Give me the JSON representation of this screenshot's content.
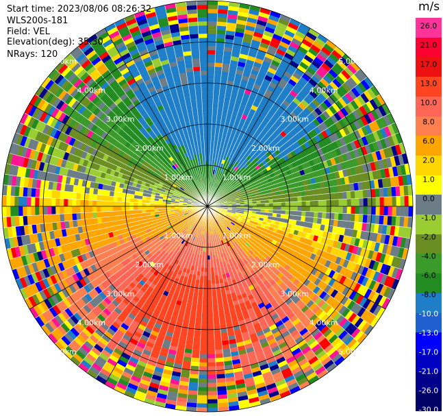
{
  "header": {
    "start_time": "Start time: 2023/08/06 08:26:32",
    "instrument": "WLS200s-181",
    "field": "Field: VEL",
    "elevation": "Elevation(deg): 35.30",
    "nrays": "NRays: 120"
  },
  "colorbar": {
    "units": "m/s",
    "ticks": [
      "26.0",
      "21.0",
      "17.0",
      "13.0",
      "10.0",
      "8.0",
      "6.0",
      "2.0",
      "1.0",
      "0.0",
      "-1.0",
      "-2.0",
      "-4.0",
      "-6.0",
      "-8.0",
      "-10.0",
      "-13.0",
      "-17.0",
      "-21.0",
      "-26.0",
      "-30.0"
    ],
    "colors": [
      "#ff3399",
      "#ff0033",
      "#ee1111",
      "#ff4422",
      "#ff6655",
      "#ff7f50",
      "#ffa500",
      "#ffd500",
      "#ffff00",
      "#6d7d87",
      "#9acd32",
      "#6b8e23",
      "#3a9a2a",
      "#228b22",
      "#1e7fc8",
      "#1f5fd0",
      "#0000ff",
      "#0000c0",
      "#00008b",
      "#000066"
    ]
  },
  "chart_data": {
    "type": "polar PPI scan",
    "field": "VEL",
    "units": "m/s",
    "elevation_deg": 35.3,
    "nrays": 120,
    "range_rings": [
      "1.00km",
      "2.00km",
      "3.00km",
      "4.00km",
      "5.00km"
    ],
    "range_ring_values_km": [
      1,
      2,
      3,
      4,
      5
    ],
    "color_levels": [
      -30,
      -26,
      -21,
      -17,
      -13,
      -10,
      -8,
      -6,
      -4,
      -2,
      -1,
      0,
      1,
      2,
      6,
      8,
      10,
      13,
      17,
      21,
      26
    ],
    "velocity_pattern": {
      "description": "dipole: negative (toward) velocities in the north/north-west sector, positive (away) velocities to the south",
      "northwest_min_ms": -10,
      "south_max_ms": 10,
      "east_ms": 1.5,
      "west_ms": -5
    },
    "max_range_km": 5.4
  }
}
